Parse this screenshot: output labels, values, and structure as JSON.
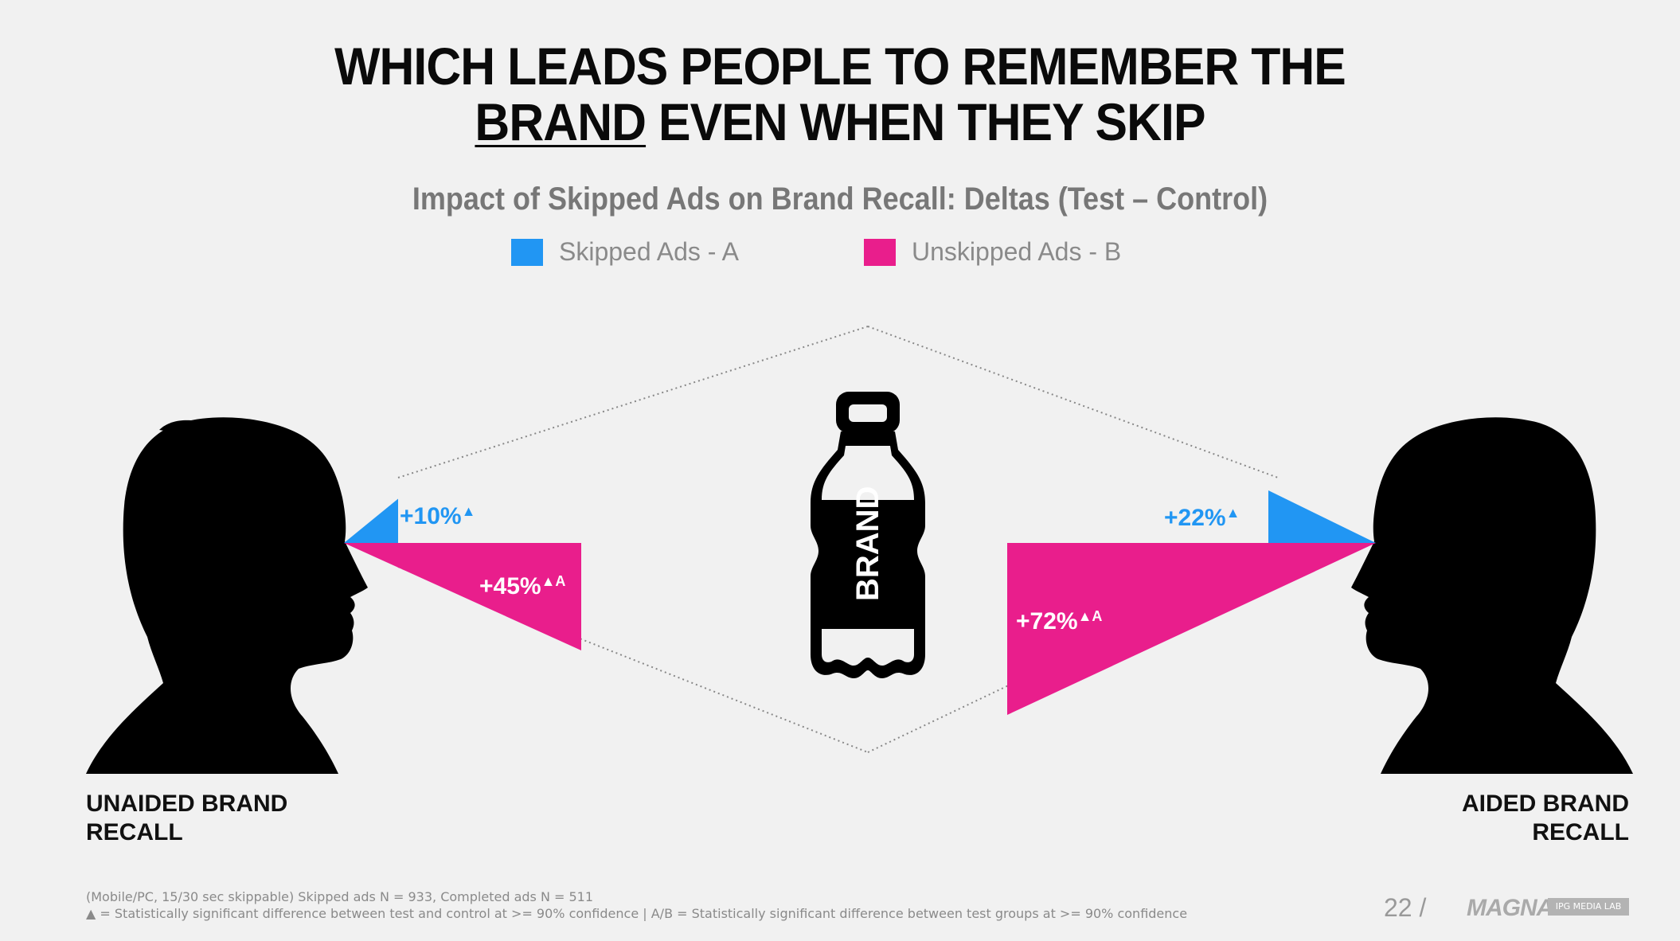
{
  "title": {
    "line1": "WHICH LEADS PEOPLE TO REMEMBER THE",
    "line2_underlined": "BRAND",
    "line2_rest": " EVEN WHEN THEY SKIP"
  },
  "subtitle": "Impact of Skipped Ads on Brand Recall:  Deltas (Test – Control)",
  "legend": [
    {
      "label": "Skipped Ads - A",
      "color": "#2196f3"
    },
    {
      "label": "Unskipped Ads - B",
      "color": "#e91e8c"
    }
  ],
  "bottle_label": "BRAND",
  "chart_data": {
    "type": "bar",
    "categories": [
      "UNAIDED BRAND RECALL",
      "AIDED BRAND RECALL"
    ],
    "series": [
      {
        "name": "Skipped Ads - A",
        "values": [
          10,
          22
        ],
        "labels": [
          "+10%",
          "+22%"
        ],
        "markers": [
          "▲",
          "▲"
        ]
      },
      {
        "name": "Unskipped Ads - B",
        "values": [
          45,
          72
        ],
        "labels": [
          "+45%",
          "+72%"
        ],
        "markers": [
          "▲A",
          "▲A"
        ]
      }
    ],
    "unit": "%"
  },
  "left_label": {
    "line1": "UNAIDED BRAND",
    "line2": "RECALL"
  },
  "right_label": {
    "line1": "AIDED BRAND",
    "line2": "RECALL"
  },
  "footnote": {
    "line1": "(Mobile/PC, 15/30 sec skippable)  Skipped ads N = 933, Completed ads N = 511",
    "line2": "▲ = Statistically significant difference between test and control at >= 90% confidence    |    A/B = Statistically significant difference between test groups at >= 90% confidence"
  },
  "page_number": "22 /",
  "logo_text": "MAGNA",
  "logo_badge": "IPG MEDIA LAB",
  "colors": {
    "skipped": "#2196f3",
    "unskipped": "#e91e8c",
    "silhouette": "#000000"
  }
}
